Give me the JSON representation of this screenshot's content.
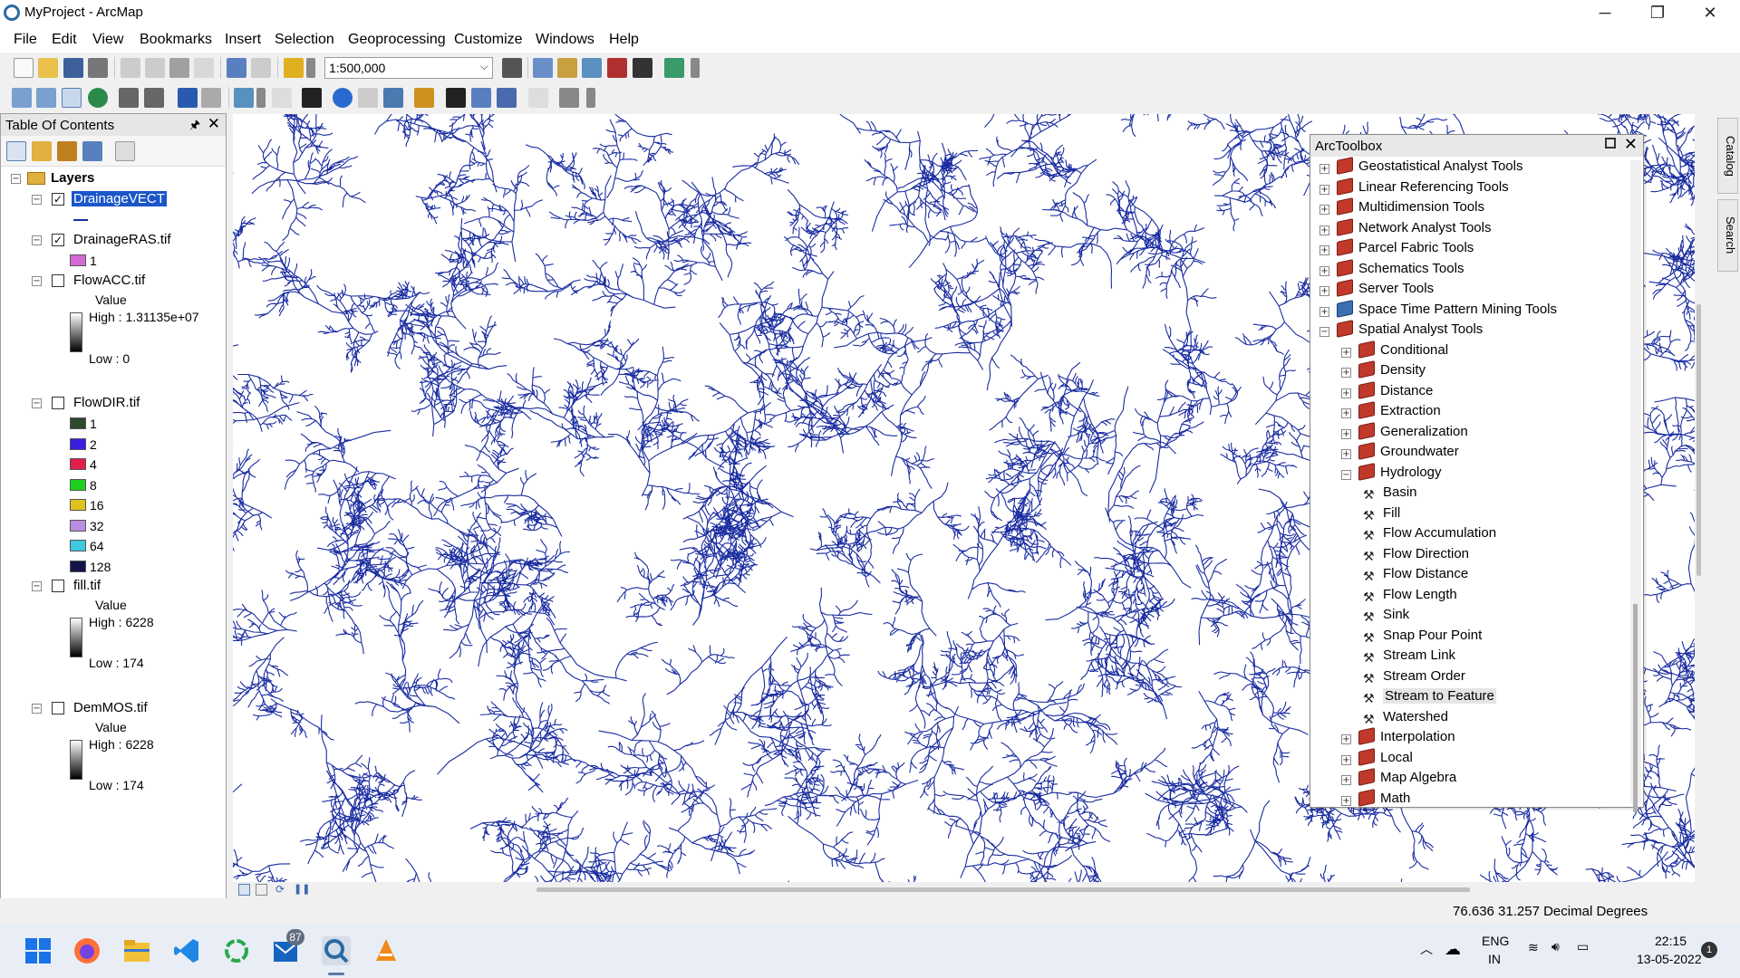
{
  "window": {
    "title": "MyProject - ArcMap",
    "min": "─",
    "restore": "❐",
    "close": "✕"
  },
  "menu": [
    "File",
    "Edit",
    "View",
    "Bookmarks",
    "Insert",
    "Selection",
    "Geoprocessing",
    "Customize",
    "Windows",
    "Help"
  ],
  "toolbar": {
    "scale": "1:500,000"
  },
  "toc": {
    "title": "Table Of Contents",
    "root": "Layers",
    "layers": [
      {
        "name": "DrainageVECT",
        "checked": true,
        "selected": true
      },
      {
        "name": "DrainageRAS.tif",
        "checked": true,
        "class_value": "1",
        "class_color": "#d36ad3"
      },
      {
        "name": "FlowACC.tif",
        "checked": false,
        "field": "Value",
        "high": "High : 1.31135e+07",
        "low": "Low : 0"
      },
      {
        "name": "FlowDIR.tif",
        "checked": false,
        "classes": [
          {
            "label": "1",
            "color": "#2d4a2d"
          },
          {
            "label": "2",
            "color": "#3a1ee0"
          },
          {
            "label": "4",
            "color": "#e01e4a"
          },
          {
            "label": "8",
            "color": "#1ed01e"
          },
          {
            "label": "16",
            "color": "#e0c21e"
          },
          {
            "label": "32",
            "color": "#b98ee0"
          },
          {
            "label": "64",
            "color": "#3ec8e0"
          },
          {
            "label": "128",
            "color": "#14144a"
          }
        ]
      },
      {
        "name": "fill.tif",
        "checked": false,
        "field": "Value",
        "high": "High : 6228",
        "low": "Low : 174"
      },
      {
        "name": "DemMOS.tif",
        "checked": false,
        "field": "Value",
        "high": "High : 6228",
        "low": "Low : 174"
      }
    ]
  },
  "toolbox": {
    "title": "ArcToolbox",
    "items": [
      {
        "label": "Geostatistical Analyst Tools",
        "type": "toolbox",
        "level": 0,
        "expanded": false
      },
      {
        "label": "Linear Referencing Tools",
        "type": "toolbox",
        "level": 0,
        "expanded": false
      },
      {
        "label": "Multidimension Tools",
        "type": "toolbox",
        "level": 0,
        "expanded": false
      },
      {
        "label": "Network Analyst Tools",
        "type": "toolbox",
        "level": 0,
        "expanded": false
      },
      {
        "label": "Parcel Fabric Tools",
        "type": "toolbox",
        "level": 0,
        "expanded": false
      },
      {
        "label": "Schematics Tools",
        "type": "toolbox",
        "level": 0,
        "expanded": false
      },
      {
        "label": "Server Tools",
        "type": "toolbox",
        "level": 0,
        "expanded": false
      },
      {
        "label": "Space Time Pattern Mining Tools",
        "type": "toolbox-blue",
        "level": 0,
        "expanded": false
      },
      {
        "label": "Spatial Analyst Tools",
        "type": "toolbox",
        "level": 0,
        "expanded": true
      },
      {
        "label": "Conditional",
        "type": "toolset",
        "level": 1,
        "expanded": false
      },
      {
        "label": "Density",
        "type": "toolset",
        "level": 1,
        "expanded": false
      },
      {
        "label": "Distance",
        "type": "toolset",
        "level": 1,
        "expanded": false
      },
      {
        "label": "Extraction",
        "type": "toolset",
        "level": 1,
        "expanded": false
      },
      {
        "label": "Generalization",
        "type": "toolset",
        "level": 1,
        "expanded": false
      },
      {
        "label": "Groundwater",
        "type": "toolset",
        "level": 1,
        "expanded": false
      },
      {
        "label": "Hydrology",
        "type": "toolset",
        "level": 1,
        "expanded": true
      },
      {
        "label": "Basin",
        "type": "tool",
        "level": 2
      },
      {
        "label": "Fill",
        "type": "tool",
        "level": 2
      },
      {
        "label": "Flow Accumulation",
        "type": "tool",
        "level": 2
      },
      {
        "label": "Flow Direction",
        "type": "tool",
        "level": 2
      },
      {
        "label": "Flow Distance",
        "type": "tool",
        "level": 2
      },
      {
        "label": "Flow Length",
        "type": "tool",
        "level": 2
      },
      {
        "label": "Sink",
        "type": "tool",
        "level": 2
      },
      {
        "label": "Snap Pour Point",
        "type": "tool",
        "level": 2
      },
      {
        "label": "Stream Link",
        "type": "tool",
        "level": 2
      },
      {
        "label": "Stream Order",
        "type": "tool",
        "level": 2
      },
      {
        "label": "Stream to Feature",
        "type": "tool",
        "level": 2,
        "selected": true
      },
      {
        "label": "Watershed",
        "type": "tool",
        "level": 2
      },
      {
        "label": "Interpolation",
        "type": "toolset",
        "level": 1,
        "expanded": false
      },
      {
        "label": "Local",
        "type": "toolset",
        "level": 1,
        "expanded": false
      },
      {
        "label": "Map Algebra",
        "type": "toolset",
        "level": 1,
        "expanded": false
      },
      {
        "label": "Math",
        "type": "toolset",
        "level": 1,
        "expanded": false
      }
    ]
  },
  "side_tabs": [
    "Catalog",
    "Search"
  ],
  "status": {
    "coords": "76.636  31.257 Decimal Degrees"
  },
  "taskbar": {
    "badge": "87",
    "lang": "ENG",
    "region": "IN",
    "time": "22:15",
    "date": "13-05-2022",
    "notif": "1"
  },
  "colors": {
    "drainage": "#1a2ca0"
  }
}
